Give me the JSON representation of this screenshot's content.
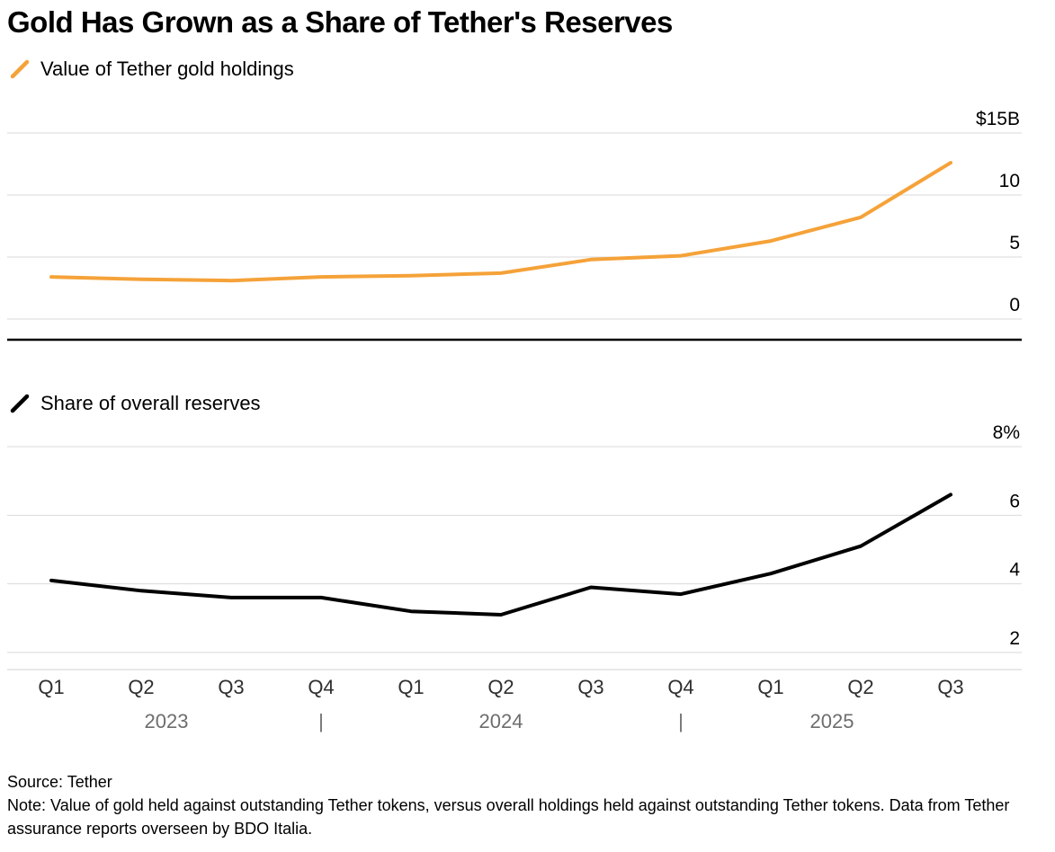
{
  "title": "Gold Has Grown as a Share of Tether's Reserves",
  "chart_data": [
    {
      "type": "line",
      "title": "Value of Tether gold holdings",
      "color": "#F5A239",
      "x": [
        "Q1 2023",
        "Q2 2023",
        "Q3 2023",
        "Q4 2023",
        "Q1 2024",
        "Q2 2024",
        "Q3 2024",
        "Q4 2024",
        "Q1 2025",
        "Q2 2025",
        "Q3 2025"
      ],
      "values": [
        3.4,
        3.2,
        3.1,
        3.4,
        3.5,
        3.7,
        4.8,
        5.1,
        6.3,
        8.2,
        12.6
      ],
      "unit": "billions USD",
      "ylim": [
        0,
        15
      ],
      "yticks": [
        0,
        5,
        10,
        15
      ],
      "ytick_labels": [
        "0",
        "5",
        "10",
        "$15B"
      ],
      "grid": true,
      "legend_position": "top-left"
    },
    {
      "type": "line",
      "title": "Share of overall reserves",
      "color": "#000000",
      "x": [
        "Q1 2023",
        "Q2 2023",
        "Q3 2023",
        "Q4 2023",
        "Q1 2024",
        "Q2 2024",
        "Q3 2024",
        "Q4 2024",
        "Q1 2025",
        "Q2 2025",
        "Q3 2025"
      ],
      "values": [
        4.1,
        3.8,
        3.6,
        3.6,
        3.2,
        3.1,
        3.9,
        3.7,
        4.3,
        5.1,
        6.6
      ],
      "unit": "percent",
      "ylim": [
        2,
        8
      ],
      "yticks": [
        2,
        4,
        6,
        8
      ],
      "ytick_labels": [
        "2",
        "4",
        "6",
        "8%"
      ],
      "grid": true,
      "legend_position": "top-left"
    }
  ],
  "x_axis": {
    "quarters": [
      "Q1",
      "Q2",
      "Q3",
      "Q4",
      "Q1",
      "Q2",
      "Q3",
      "Q4",
      "Q1",
      "Q2",
      "Q3"
    ],
    "years": [
      "2023",
      "2024",
      "2025"
    ],
    "separator": "|"
  },
  "footer": {
    "source": "Source: Tether",
    "note": "Note: Value of gold held against outstanding Tether tokens, versus overall holdings held against outstanding Tether tokens. Data from Tether assurance reports overseen by BDO Italia."
  }
}
